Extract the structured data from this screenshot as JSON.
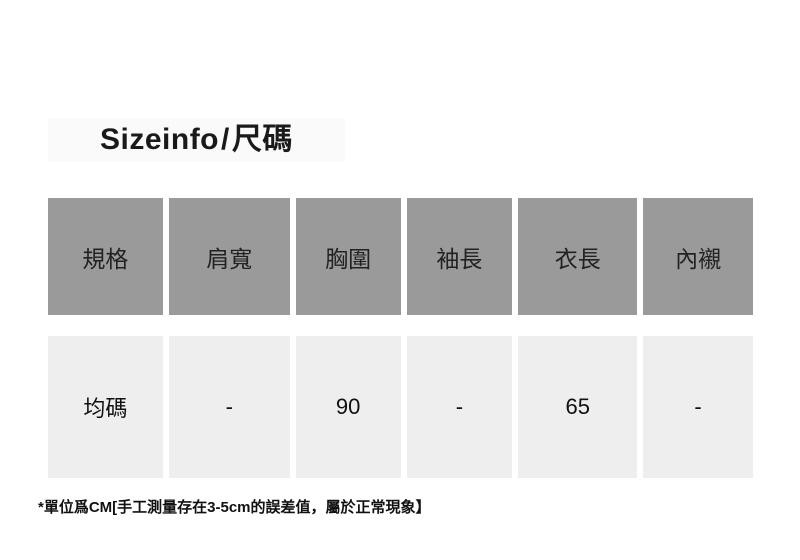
{
  "section": {
    "title": {
      "latin": "Sizeinfo",
      "separator": "/",
      "cjk": "尺碼"
    }
  },
  "table": {
    "headers": [
      "規格",
      "肩寬",
      "胸圍",
      "袖長",
      "衣長",
      "內襯"
    ],
    "rows": [
      [
        "均碼",
        "-",
        "90",
        "-",
        "65",
        "-"
      ]
    ]
  },
  "footnote": "*單位爲CM[手工測量存在3-5cm的誤差值，屬於正常現象】",
  "colors": {
    "header_bg": "#9a9a9a",
    "row_bg": "#eeeeee",
    "title_bg": "#fafafa",
    "text": "#1a1a1a"
  }
}
